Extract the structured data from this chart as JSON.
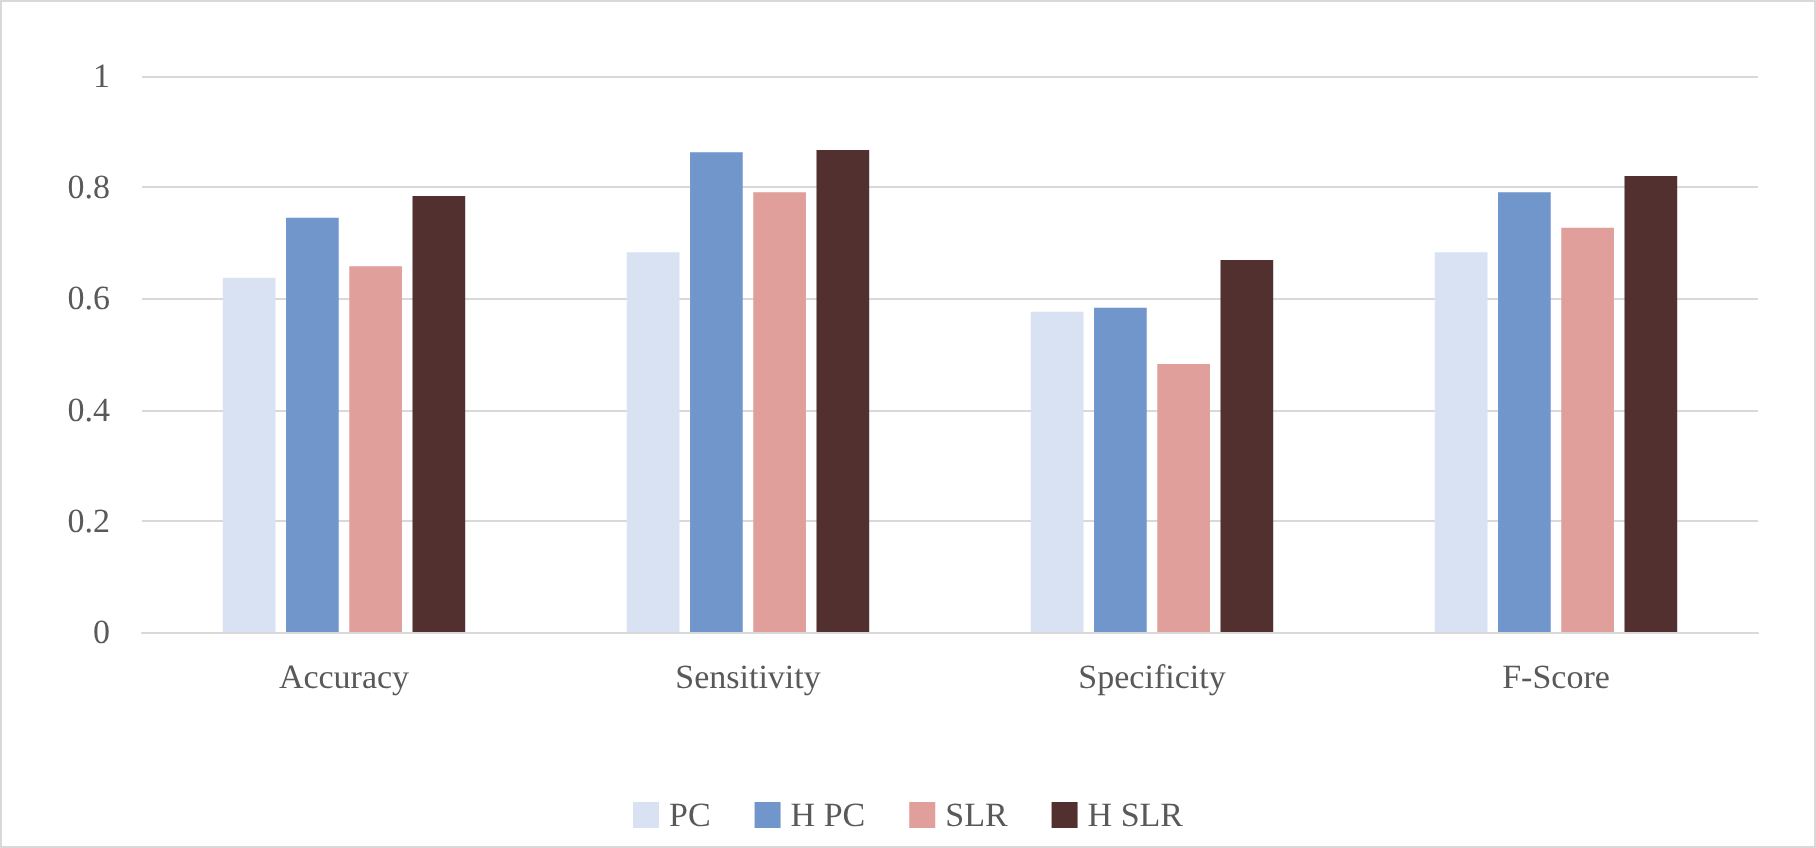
{
  "chart_data": {
    "type": "bar",
    "categories": [
      "Accuracy",
      "Sensitivity",
      "Specificity",
      "F-Score"
    ],
    "series": [
      {
        "name": "PC",
        "color": "#d9e2f3",
        "values": [
          0.637,
          0.683,
          0.576,
          0.683
        ]
      },
      {
        "name": "H PC",
        "color": "#7096cc",
        "values": [
          0.745,
          0.863,
          0.583,
          0.791
        ]
      },
      {
        "name": "SLR",
        "color": "#e09f9b",
        "values": [
          0.658,
          0.791,
          0.482,
          0.727
        ]
      },
      {
        "name": "H SLR",
        "color": "#533030",
        "values": [
          0.784,
          0.867,
          0.669,
          0.82
        ]
      }
    ],
    "ylim": [
      0,
      1
    ],
    "yticks": [
      0,
      0.2,
      0.4,
      0.6,
      0.8,
      1
    ],
    "grid": "y",
    "legend": "bottom"
  }
}
